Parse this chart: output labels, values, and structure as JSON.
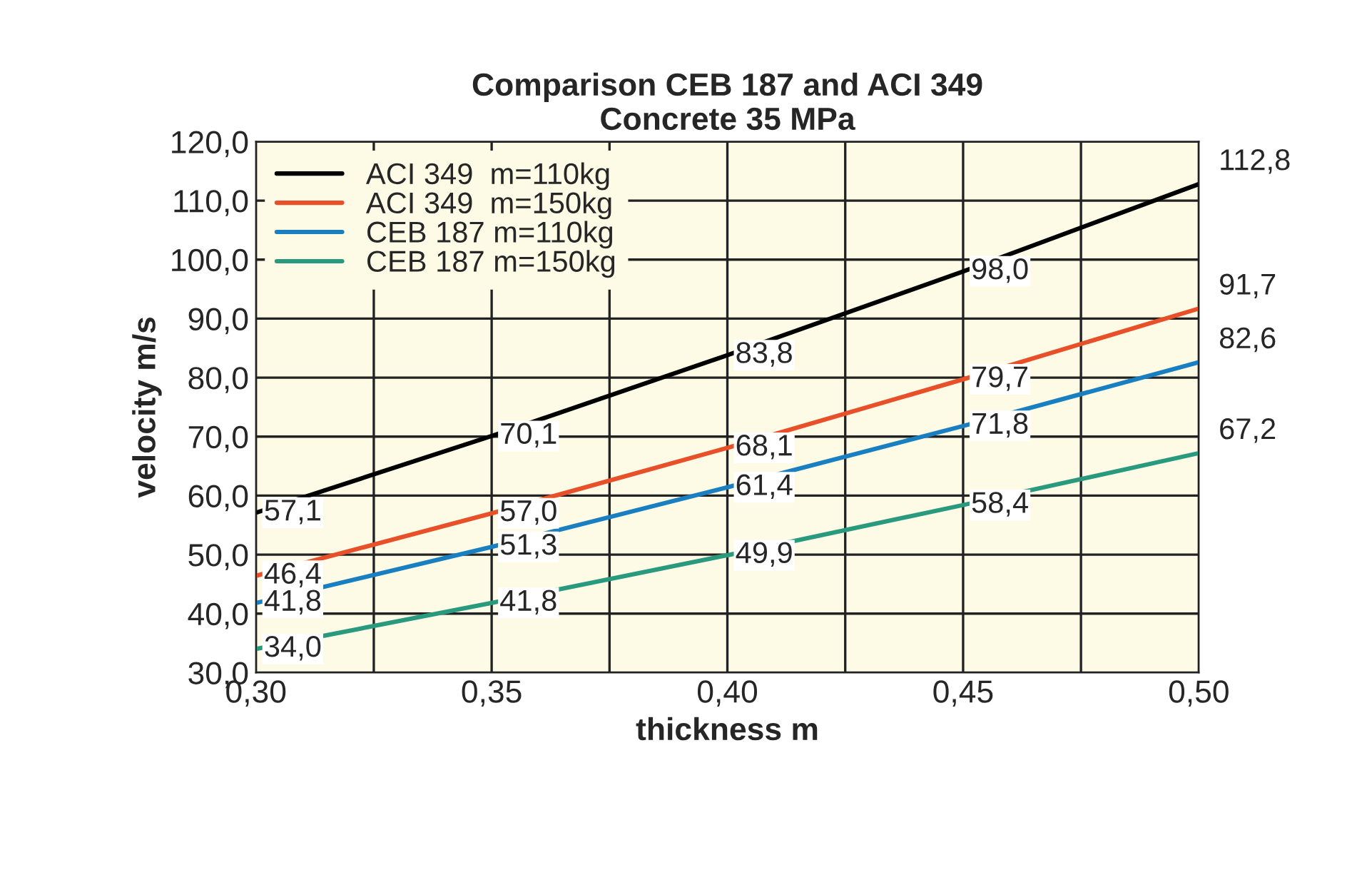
{
  "chart_data": {
    "type": "line",
    "title": "Comparison CEB 187 and ACI 349\nConcrete 35 MPa",
    "xlabel": "thickness m",
    "ylabel": "velocity m/s",
    "x": [
      0.3,
      0.35,
      0.4,
      0.45,
      0.5
    ],
    "series": [
      {
        "name": "ACI 349  m=110kg",
        "color": "#000000",
        "values": [
          57.1,
          70.1,
          83.8,
          98.0,
          112.8
        ],
        "value_labels": [
          "57,1",
          "70,1",
          "83,8",
          "98,0",
          "112,8"
        ]
      },
      {
        "name": "ACI 349  m=150kg",
        "color": "#e8502a",
        "values": [
          46.4,
          57.0,
          68.1,
          79.7,
          91.7
        ],
        "value_labels": [
          "46,4",
          "57,0",
          "68,1",
          "79,7",
          "91,7"
        ]
      },
      {
        "name": "CEB 187 m=110kg",
        "color": "#1a7fc1",
        "values": [
          41.8,
          51.3,
          61.4,
          71.8,
          82.6
        ],
        "value_labels": [
          "41,8",
          "51,3",
          "61,4",
          "71,8",
          "82,6"
        ]
      },
      {
        "name": "CEB 187 m=150kg",
        "color": "#2a9a7e",
        "values": [
          34.0,
          41.8,
          49.9,
          58.4,
          67.2
        ],
        "value_labels": [
          "34,0",
          "41,8",
          "49,9",
          "58,4",
          "67,2"
        ]
      }
    ],
    "xlim": [
      0.3,
      0.5
    ],
    "xticks": [
      {
        "value": 0.3,
        "label": "0,30"
      },
      {
        "value": 0.325,
        "label": null
      },
      {
        "value": 0.35,
        "label": "0,35"
      },
      {
        "value": 0.375,
        "label": null
      },
      {
        "value": 0.4,
        "label": "0,40"
      },
      {
        "value": 0.425,
        "label": null
      },
      {
        "value": 0.45,
        "label": "0,45"
      },
      {
        "value": 0.475,
        "label": null
      },
      {
        "value": 0.5,
        "label": "0,50"
      }
    ],
    "ylim": [
      30,
      120
    ],
    "yticks": [
      {
        "value": 30,
        "label": "30,0"
      },
      {
        "value": 40,
        "label": "40,0"
      },
      {
        "value": 50,
        "label": "50,0"
      },
      {
        "value": 60,
        "label": "60,0"
      },
      {
        "value": 70,
        "label": "70,0"
      },
      {
        "value": 80,
        "label": "80,0"
      },
      {
        "value": 90,
        "label": "90,0"
      },
      {
        "value": 100,
        "label": "100,0"
      },
      {
        "value": 110,
        "label": "110,0"
      },
      {
        "value": 120,
        "label": "120,0"
      }
    ],
    "grid": true,
    "legend": "top left",
    "line_style": "solid",
    "marker": "none"
  }
}
